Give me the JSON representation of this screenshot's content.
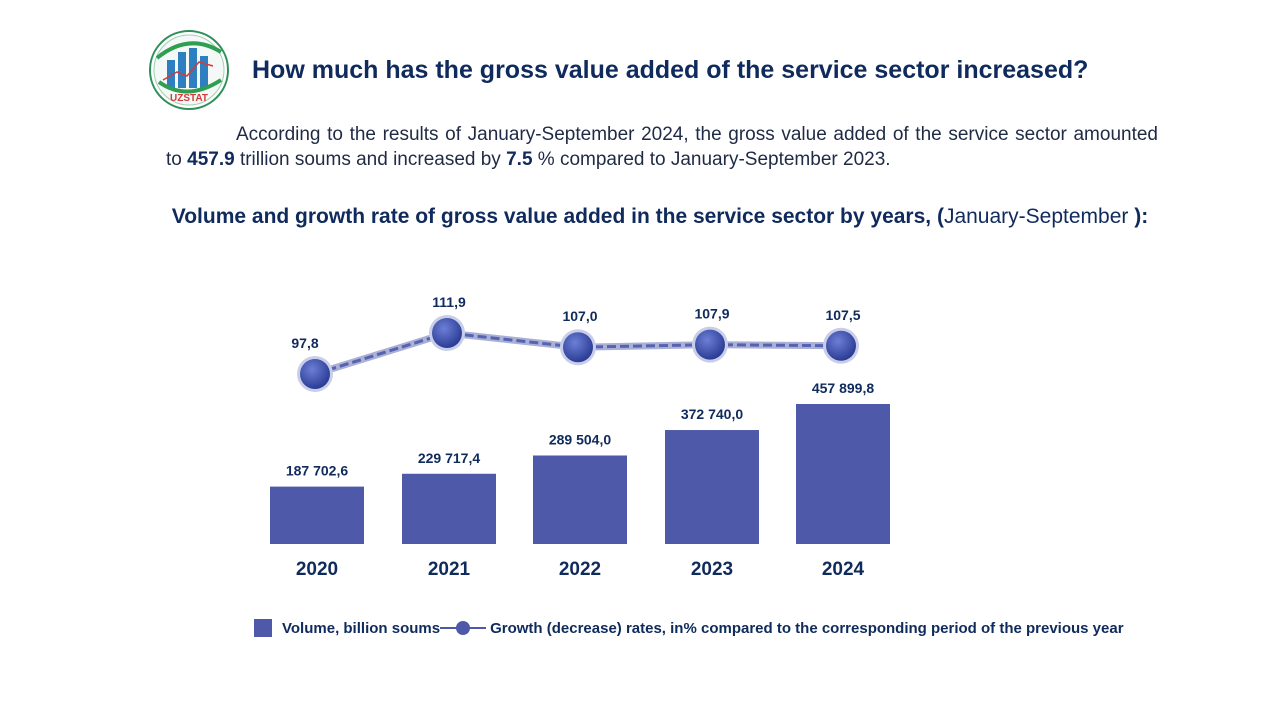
{
  "header": {
    "logo_text": "UZSTAT",
    "title": "How much has the gross value added of the service sector increased?"
  },
  "intro": {
    "text_1": "According to the results of January-September 2024, the gross value added of the service sector amounted to ",
    "value_volume": "457.9",
    "text_2": " trillion soums and increased by ",
    "value_growth": "7.5",
    "text_3": " % compared to January-September 2023."
  },
  "chart_title": {
    "bold_part": "Volume and growth rate of gross value added in the service sector by years, (",
    "normal_part": "January-September ",
    "end_part": "):"
  },
  "colors": {
    "bar": "#4e59aa",
    "title": "#0f2a5c",
    "marker": "#3d4fa8"
  },
  "chart_data": {
    "type": "bar",
    "categories": [
      "2020",
      "2021",
      "2022",
      "2023",
      "2024"
    ],
    "series": [
      {
        "name": "Volume, billion soums",
        "type": "bar",
        "values": [
          187702.6,
          229717.4,
          289504.0,
          372740.0,
          457899.8
        ],
        "labels": [
          "187 702,6",
          "229 717,4",
          "289 504,0",
          "372 740,0",
          "457 899,8"
        ]
      },
      {
        "name": "Growth (decrease) rates, in% compared to the corresponding period of the previous year",
        "type": "line",
        "values": [
          97.8,
          111.9,
          107.0,
          107.9,
          107.5
        ],
        "labels": [
          "97,8",
          "111,9",
          "107,0",
          "107,9",
          "107,5"
        ]
      }
    ],
    "legend": [
      "Volume, billion soums",
      "Growth (decrease) rates, in% compared to the corresponding period of the previous year"
    ],
    "legend_position": "bottom"
  }
}
